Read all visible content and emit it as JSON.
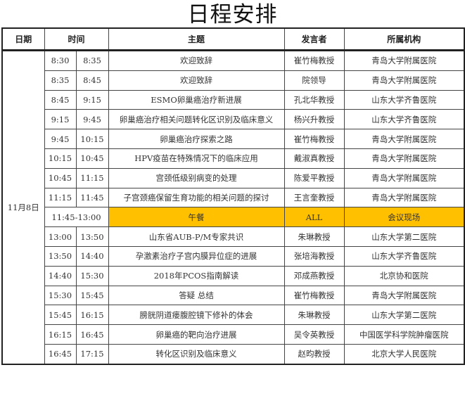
{
  "title": "日程安排",
  "headers": {
    "date": "日期",
    "time": "时间",
    "topic": "主题",
    "speaker": "发言者",
    "org": "所属机构"
  },
  "date": "11月8日",
  "highlight_color": "#ffc000",
  "rows": [
    {
      "start": "8:30",
      "end": "8:35",
      "topic": "欢迎致辞",
      "speaker": "崔竹梅教授",
      "org": "青岛大学附属医院"
    },
    {
      "start": "8:35",
      "end": "8:45",
      "topic": "欢迎致辞",
      "speaker": "院领导",
      "org": "青岛大学附属医院"
    },
    {
      "start": "8:45",
      "end": "9:15",
      "topic": "ESMO卵巢癌治疗新进展",
      "speaker": "孔北华教授",
      "org": "山东大学齐鲁医院"
    },
    {
      "start": "9:15",
      "end": "9:45",
      "topic": "卵巢癌治疗相关问题转化区识别及临床意义",
      "speaker": "杨兴升教授",
      "org": "山东大学齐鲁医院"
    },
    {
      "start": "9:45",
      "end": "10:15",
      "topic": "卵巢癌治疗探索之路",
      "speaker": "崔竹梅教授",
      "org": "青岛大学附属医院"
    },
    {
      "start": "10:15",
      "end": "10:45",
      "topic": "HPV疫苗在特殊情况下的临床应用",
      "speaker": "戴淑真教授",
      "org": "青岛大学附属医院"
    },
    {
      "start": "10:45",
      "end": "11:15",
      "topic": "宫颈低级别病变的处理",
      "speaker": "陈爱平教授",
      "org": "青岛大学附属医院"
    },
    {
      "start": "11:15",
      "end": "11:45",
      "topic": "子宫颈癌保留生育功能的相关问题的探讨",
      "speaker": "王言奎教授",
      "org": "青岛大学附属医院"
    },
    {
      "range": "11:45-13:00",
      "topic": "午餐",
      "speaker": "ALL",
      "org": "会议现场"
    },
    {
      "start": "13:00",
      "end": "13:50",
      "topic": "山东省AUB-P/M专家共识",
      "speaker": "朱琳教授",
      "org": "山东大学第二医院"
    },
    {
      "start": "13:50",
      "end": "14:40",
      "topic": "孕激素治疗子宫内膜异位症的进展",
      "speaker": "张培海教授",
      "org": "山东大学齐鲁医院"
    },
    {
      "start": "14:40",
      "end": "15:30",
      "topic": "2018年PCOS指南解读",
      "speaker": "邓成燕教授",
      "org": "北京协和医院"
    },
    {
      "start": "15:30",
      "end": "15:45",
      "topic": "答疑 总结",
      "speaker": "崔竹梅教授",
      "org": "青岛大学附属医院"
    },
    {
      "start": "15:45",
      "end": "16:15",
      "topic": "膀胱阴道瘘腹腔镜下修补的体会",
      "speaker": "朱琳教授",
      "org": "山东大学第二医院"
    },
    {
      "start": "16:15",
      "end": "16:45",
      "topic": "卵巢癌的靶向治疗进展",
      "speaker": "吴令英教授",
      "org": "中国医学科学院肿瘤医院"
    },
    {
      "start": "16:45",
      "end": "17:15",
      "topic": "转化区识别及临床意义",
      "speaker": "赵昀教授",
      "org": "北京大学人民医院"
    }
  ]
}
